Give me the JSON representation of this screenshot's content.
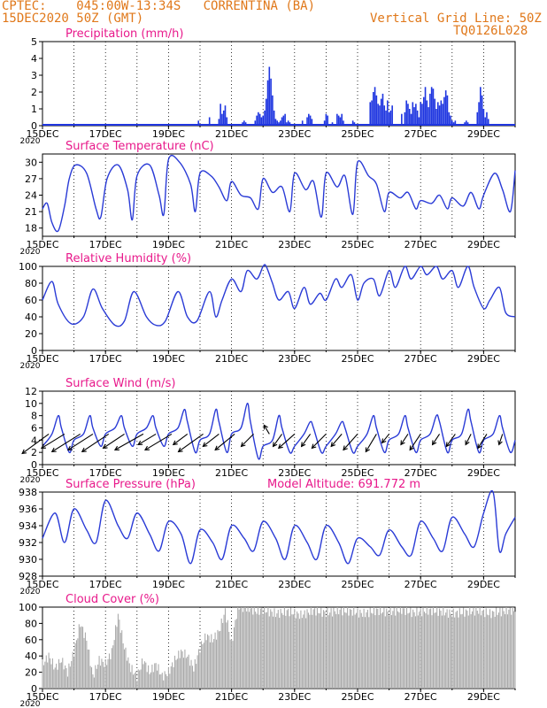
{
  "header": {
    "source": "CPTEC:",
    "coords": "045:00W-13:34S",
    "station": "CORRENTINA (BA)",
    "date": "15DEC2020 50Z (GMT)",
    "grid_note": "Vertical Grid Line: 50Z",
    "code": "TQ0126L028"
  },
  "colors": {
    "title": "#e8198b",
    "header": "#e0781a",
    "line": "#2a3bd6",
    "cloud": "#a9a9a9",
    "grid": "#000000"
  },
  "x_axis": {
    "start_day": 15,
    "end_day": 30,
    "tick_labels": [
      "15DEC",
      "17DEC",
      "19DEC",
      "21DEC",
      "23DEC",
      "25DEC",
      "27DEC",
      "29DEC"
    ],
    "year_label": "2020"
  },
  "chart_data": [
    {
      "type": "bar",
      "title": "Precipitation (mm/h)",
      "ylim": [
        0,
        5
      ],
      "yticks": [
        "0",
        "1",
        "2",
        "3",
        "4",
        "5"
      ],
      "x": [
        19.95,
        20.3,
        20.6,
        20.65,
        20.7,
        20.75,
        20.8,
        20.85,
        21.35,
        21.4,
        21.45,
        21.75,
        21.8,
        21.85,
        21.9,
        21.95,
        22.0,
        22.05,
        22.1,
        22.15,
        22.2,
        22.25,
        22.3,
        22.35,
        22.4,
        22.45,
        22.5,
        22.55,
        22.6,
        22.65,
        22.7,
        22.75,
        22.8,
        22.85,
        23.25,
        23.4,
        23.45,
        23.5,
        23.55,
        23.95,
        24.0,
        24.05,
        24.2,
        24.35,
        24.4,
        24.45,
        24.5,
        24.55,
        24.85,
        24.9,
        25.4,
        25.45,
        25.5,
        25.55,
        25.6,
        25.65,
        25.7,
        25.75,
        25.8,
        25.85,
        25.9,
        25.95,
        26.0,
        26.05,
        26.1,
        26.4,
        26.5,
        26.55,
        26.6,
        26.65,
        26.7,
        26.75,
        26.8,
        26.85,
        26.9,
        26.95,
        27.0,
        27.05,
        27.1,
        27.15,
        27.2,
        27.25,
        27.3,
        27.35,
        27.4,
        27.45,
        27.5,
        27.55,
        27.6,
        27.65,
        27.7,
        27.75,
        27.8,
        27.85,
        27.9,
        27.95,
        28.0,
        28.05,
        28.1,
        28.4,
        28.45,
        28.5,
        28.8,
        28.85,
        28.9,
        28.95,
        29.0,
        29.05,
        29.1,
        29.15
      ],
      "values": [
        0.3,
        0.5,
        0.4,
        1.3,
        0.7,
        0.9,
        1.2,
        0.5,
        0.2,
        0.3,
        0.2,
        0.3,
        0.6,
        0.8,
        0.7,
        0.5,
        0.6,
        0.9,
        1.6,
        2.7,
        3.5,
        2.8,
        1.8,
        0.9,
        0.4,
        0.3,
        0.2,
        0.3,
        0.5,
        0.6,
        0.7,
        0.2,
        0.3,
        0.2,
        0.3,
        0.5,
        0.7,
        0.6,
        0.4,
        0.3,
        0.7,
        0.6,
        0.2,
        0.7,
        0.6,
        0.5,
        0.7,
        0.3,
        0.3,
        0.2,
        1.4,
        1.5,
        2.0,
        2.3,
        1.8,
        1.3,
        1.2,
        1.6,
        1.9,
        1.2,
        0.9,
        1.5,
        0.8,
        0.9,
        1.2,
        0.7,
        0.8,
        1.5,
        1.3,
        1.0,
        0.7,
        1.4,
        1.1,
        1.3,
        0.9,
        0.5,
        1.4,
        1.3,
        1.7,
        2.3,
        1.5,
        1.1,
        1.9,
        2.3,
        2.2,
        1.6,
        1.0,
        1.4,
        1.2,
        1.5,
        1.3,
        1.7,
        2.1,
        1.8,
        0.8,
        0.6,
        0.3,
        0.2,
        0.3,
        0.2,
        0.3,
        0.2,
        0.8,
        1.4,
        2.3,
        1.8,
        1.0,
        0.5,
        0.8,
        0.4
      ]
    },
    {
      "type": "line",
      "title": "Surface Temperature (nC)",
      "ylim": [
        16.5,
        31.5
      ],
      "yticks": [
        "18",
        "21",
        "24",
        "27",
        "30"
      ],
      "x": [
        15.0,
        15.15,
        15.3,
        15.5,
        15.7,
        15.85,
        16.05,
        16.4,
        16.7,
        16.85,
        17.05,
        17.4,
        17.7,
        17.85,
        18.0,
        18.4,
        18.7,
        18.85,
        19.0,
        19.35,
        19.7,
        19.85,
        20.0,
        20.35,
        20.6,
        20.85,
        21.0,
        21.3,
        21.6,
        21.85,
        22.0,
        22.3,
        22.6,
        22.85,
        23.0,
        23.35,
        23.6,
        23.85,
        24.0,
        24.35,
        24.6,
        24.85,
        25.0,
        25.35,
        25.6,
        25.85,
        26.0,
        26.35,
        26.6,
        26.85,
        27.0,
        27.35,
        27.6,
        27.85,
        28.0,
        28.35,
        28.6,
        28.85,
        29.0,
        29.35,
        29.6,
        29.85,
        30.0
      ],
      "values": [
        21.5,
        22.5,
        19.0,
        17.5,
        22.0,
        27.0,
        29.5,
        28.0,
        21.5,
        20.0,
        27.0,
        29.5,
        25.0,
        19.5,
        27.5,
        29.5,
        24.0,
        20.5,
        30.5,
        30.0,
        26.0,
        21.0,
        28.0,
        27.5,
        25.5,
        23.0,
        26.5,
        24.0,
        23.5,
        21.5,
        27.0,
        24.5,
        25.5,
        21.0,
        28.0,
        25.0,
        26.5,
        20.0,
        28.0,
        25.5,
        27.5,
        20.5,
        30.0,
        27.5,
        26.0,
        21.0,
        24.5,
        23.5,
        24.5,
        21.5,
        23.0,
        22.5,
        24.0,
        21.5,
        23.5,
        22.0,
        24.5,
        21.5,
        24.0,
        28.0,
        25.0,
        21.0,
        28.5
      ]
    },
    {
      "type": "line",
      "title": "Relative Humidity (%)",
      "ylim": [
        0,
        100
      ],
      "yticks": [
        "0",
        "20",
        "40",
        "60",
        "80",
        "100"
      ],
      "x": [
        15.0,
        15.3,
        15.5,
        15.9,
        16.3,
        16.6,
        16.9,
        17.3,
        17.6,
        17.9,
        18.3,
        18.6,
        18.9,
        19.3,
        19.6,
        19.9,
        20.3,
        20.5,
        20.7,
        21.0,
        21.3,
        21.5,
        21.8,
        22.0,
        22.1,
        22.3,
        22.5,
        22.8,
        23.0,
        23.3,
        23.5,
        23.8,
        24.0,
        24.3,
        24.5,
        24.8,
        25.0,
        25.2,
        25.5,
        25.7,
        26.0,
        26.2,
        26.5,
        26.7,
        27.0,
        27.2,
        27.5,
        27.7,
        28.0,
        28.2,
        28.5,
        28.7,
        29.0,
        29.2,
        29.5,
        29.7,
        30.0
      ],
      "values": [
        60,
        82,
        55,
        32,
        40,
        73,
        50,
        30,
        35,
        70,
        40,
        30,
        35,
        70,
        40,
        35,
        70,
        40,
        60,
        85,
        70,
        95,
        85,
        100,
        100,
        80,
        60,
        70,
        50,
        75,
        55,
        68,
        60,
        85,
        75,
        90,
        60,
        80,
        85,
        65,
        95,
        75,
        100,
        85,
        100,
        90,
        100,
        85,
        95,
        75,
        100,
        75,
        50,
        60,
        75,
        45,
        40
      ]
    },
    {
      "type": "line",
      "title": "Surface Wind (m/s)",
      "ylim": [
        0,
        12
      ],
      "yticks": [
        "0",
        "2",
        "4",
        "6",
        "8",
        "10",
        "12"
      ],
      "x": [
        15.0,
        15.3,
        15.5,
        15.6,
        15.85,
        16.0,
        16.3,
        16.5,
        16.6,
        16.85,
        17.0,
        17.3,
        17.5,
        17.6,
        17.85,
        18.0,
        18.3,
        18.5,
        18.6,
        18.85,
        19.0,
        19.3,
        19.5,
        19.6,
        19.85,
        20.0,
        20.3,
        20.5,
        20.6,
        20.85,
        21.0,
        21.3,
        21.5,
        21.6,
        21.85,
        22.0,
        22.3,
        22.5,
        22.6,
        22.85,
        23.0,
        23.3,
        23.5,
        23.6,
        23.85,
        24.0,
        24.3,
        24.5,
        24.6,
        24.85,
        25.0,
        25.3,
        25.5,
        25.6,
        25.85,
        26.0,
        26.3,
        26.5,
        26.6,
        26.85,
        27.0,
        27.3,
        27.5,
        27.6,
        27.85,
        28.0,
        28.3,
        28.5,
        28.6,
        28.85,
        29.0,
        29.3,
        29.5,
        29.6,
        29.85,
        30.0
      ],
      "values": [
        3,
        5,
        8,
        6,
        2,
        4,
        5,
        8,
        6,
        3,
        5,
        6,
        8,
        6,
        3,
        5,
        6,
        8,
        6,
        3,
        5,
        6,
        9,
        7,
        2,
        4,
        5,
        9,
        7,
        2,
        5,
        6,
        10,
        7,
        1,
        3,
        4,
        8,
        6,
        2,
        3,
        5,
        7,
        6,
        2,
        3,
        5,
        7,
        6,
        2,
        3,
        5,
        8,
        6,
        2,
        4,
        5,
        8,
        6,
        2,
        4,
        5,
        8,
        7,
        2,
        4,
        5,
        9,
        7,
        2,
        4,
        5,
        8,
        6,
        2,
        4
      ],
      "wind_vectors": [
        {
          "x": 15.2,
          "u": -0.75,
          "v": -0.55
        },
        {
          "x": 15.7,
          "u": -0.65,
          "v": -0.4
        },
        {
          "x": 16.2,
          "u": -0.8,
          "v": -0.5
        },
        {
          "x": 16.6,
          "u": -0.7,
          "v": -0.45
        },
        {
          "x": 17.1,
          "u": -0.75,
          "v": -0.5
        },
        {
          "x": 17.6,
          "u": -0.6,
          "v": -0.4
        },
        {
          "x": 18.2,
          "u": -0.8,
          "v": -0.45
        },
        {
          "x": 18.6,
          "u": -0.5,
          "v": -0.3
        },
        {
          "x": 19.1,
          "u": -0.75,
          "v": -0.45
        },
        {
          "x": 19.6,
          "u": -0.4,
          "v": -0.3
        },
        {
          "x": 20.1,
          "u": -0.7,
          "v": -0.5
        },
        {
          "x": 20.6,
          "u": -0.45,
          "v": -0.35
        },
        {
          "x": 21.1,
          "u": -0.55,
          "v": -0.45
        },
        {
          "x": 21.7,
          "u": -0.35,
          "v": -0.35
        },
        {
          "x": 22.2,
          "u": -0.15,
          "v": 0.25
        },
        {
          "x": 22.6,
          "u": -0.25,
          "v": -0.35
        },
        {
          "x": 23.0,
          "u": -0.45,
          "v": -0.4
        },
        {
          "x": 23.5,
          "u": -0.25,
          "v": -0.35
        },
        {
          "x": 24.0,
          "u": -0.4,
          "v": -0.4
        },
        {
          "x": 24.5,
          "u": -0.3,
          "v": -0.35
        },
        {
          "x": 25.0,
          "u": -0.4,
          "v": -0.45
        },
        {
          "x": 25.6,
          "u": -0.3,
          "v": -0.5
        },
        {
          "x": 26.0,
          "u": -0.2,
          "v": -0.25
        },
        {
          "x": 26.6,
          "u": -0.2,
          "v": -0.3
        },
        {
          "x": 27.0,
          "u": -0.3,
          "v": -0.45
        },
        {
          "x": 27.6,
          "u": -0.2,
          "v": -0.3
        },
        {
          "x": 28.1,
          "u": -0.25,
          "v": -0.35
        },
        {
          "x": 28.6,
          "u": -0.15,
          "v": -0.3
        },
        {
          "x": 29.1,
          "u": -0.25,
          "v": -0.4
        },
        {
          "x": 29.6,
          "u": -0.1,
          "v": -0.3
        }
      ]
    },
    {
      "type": "line",
      "title": "Surface Pressure (hPa)",
      "annotation": "Model Altitude: 691.772 m",
      "ylim": [
        928,
        938
      ],
      "yticks": [
        "928",
        "930",
        "932",
        "934",
        "936",
        "938"
      ],
      "x": [
        15.0,
        15.4,
        15.7,
        16.0,
        16.4,
        16.7,
        17.0,
        17.4,
        17.7,
        18.0,
        18.4,
        18.7,
        19.0,
        19.4,
        19.7,
        20.0,
        20.4,
        20.7,
        21.0,
        21.4,
        21.7,
        22.0,
        22.4,
        22.7,
        23.0,
        23.4,
        23.7,
        24.0,
        24.4,
        24.7,
        25.0,
        25.4,
        25.7,
        26.0,
        26.4,
        26.7,
        27.0,
        27.4,
        27.7,
        28.0,
        28.4,
        28.7,
        29.0,
        29.3,
        29.5,
        29.7,
        30.0
      ],
      "values": [
        932.5,
        935.5,
        932.0,
        936.0,
        933.5,
        932.0,
        937.0,
        934.0,
        932.5,
        935.5,
        933.0,
        931.0,
        934.5,
        933.0,
        929.5,
        933.5,
        932.0,
        930.0,
        934.0,
        932.5,
        931.0,
        934.5,
        932.5,
        930.0,
        934.0,
        932.0,
        930.0,
        934.0,
        932.0,
        929.5,
        932.5,
        931.5,
        930.5,
        933.5,
        931.5,
        930.5,
        934.5,
        932.5,
        931.0,
        935.0,
        933.0,
        931.5,
        935.5,
        938.0,
        931.0,
        933.0,
        935.0
      ]
    },
    {
      "type": "area",
      "title": "Cloud Cover (%)",
      "ylim": [
        0,
        100
      ],
      "yticks": [
        "0",
        "20",
        "40",
        "60",
        "80",
        "100"
      ],
      "x": [
        15.0,
        15.2,
        15.4,
        15.6,
        15.8,
        16.0,
        16.2,
        16.4,
        16.6,
        16.8,
        17.0,
        17.2,
        17.4,
        17.6,
        17.8,
        18.0,
        18.2,
        18.4,
        18.6,
        18.8,
        19.0,
        19.2,
        19.4,
        19.6,
        19.8,
        20.0,
        20.2,
        20.4,
        20.6,
        20.8,
        21.0,
        21.2,
        21.4,
        21.6,
        21.8,
        22.0,
        22.4,
        22.8,
        23.2,
        23.6,
        24.0,
        24.4,
        24.8,
        25.2,
        25.6,
        26.0,
        26.4,
        26.8,
        27.2,
        27.6,
        28.0,
        28.4,
        28.8,
        29.2,
        29.6,
        30.0
      ],
      "values": [
        30,
        40,
        25,
        35,
        20,
        45,
        80,
        60,
        15,
        35,
        30,
        45,
        90,
        50,
        25,
        15,
        35,
        20,
        30,
        15,
        20,
        35,
        45,
        40,
        25,
        50,
        65,
        60,
        70,
        95,
        55,
        100,
        100,
        98,
        95,
        97,
        92,
        95,
        90,
        96,
        93,
        96,
        95,
        92,
        96,
        94,
        97,
        93,
        96,
        95,
        92,
        94,
        96,
        92,
        95,
        97
      ]
    }
  ]
}
